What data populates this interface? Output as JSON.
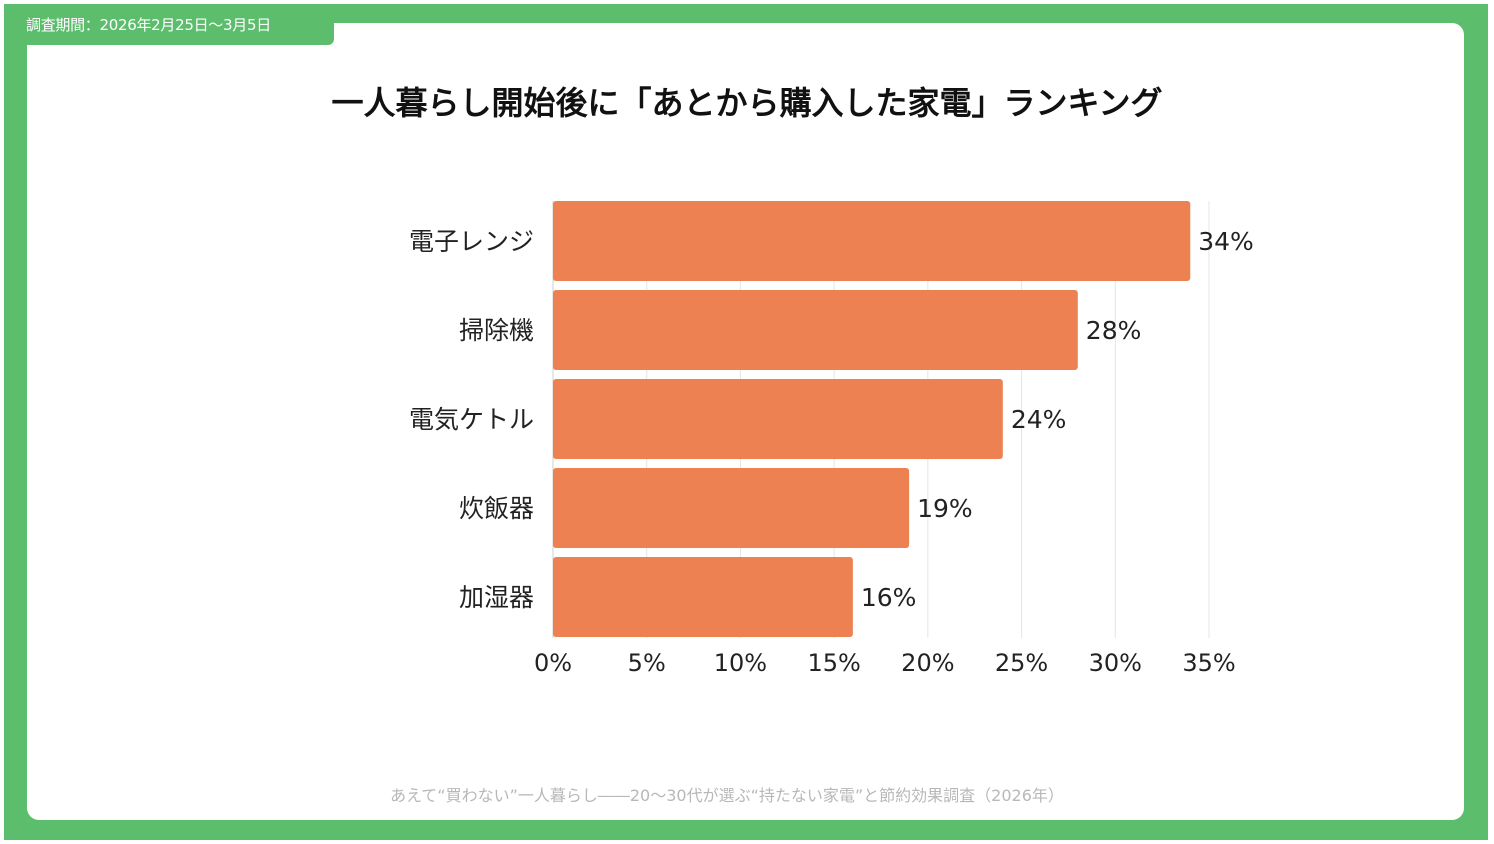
{
  "header": {
    "period": "調査期間：2026年2月25日～3月5日",
    "title": "一人暮らし開始後に「あとから購入した家電」ランキング"
  },
  "footer": {
    "source": "あえて“買わない”一人暮らし――20〜30代が選ぶ“持たない家電”と節約効果調査（2026年）"
  },
  "colors": {
    "frame": "#5cbd6c",
    "bar": "#ed8152",
    "grid": "#e4e4e4"
  },
  "chart_data": {
    "type": "bar",
    "orientation": "horizontal",
    "title": "一人暮らし開始後に「あとから購入した家電」ランキング",
    "categories": [
      "電子レンジ",
      "掃除機",
      "電気ケトル",
      "炊飯器",
      "加湿器"
    ],
    "values": [
      34,
      28,
      24,
      19,
      16
    ],
    "value_labels": [
      "34%",
      "28%",
      "24%",
      "19%",
      "16%"
    ],
    "xlim": [
      0,
      35
    ],
    "xticks": [
      0,
      5,
      10,
      15,
      20,
      25,
      30,
      35
    ],
    "xtick_labels": [
      "0%",
      "5%",
      "10%",
      "15%",
      "20%",
      "25%",
      "30%",
      "35%"
    ],
    "grid": true,
    "legend": "none"
  }
}
